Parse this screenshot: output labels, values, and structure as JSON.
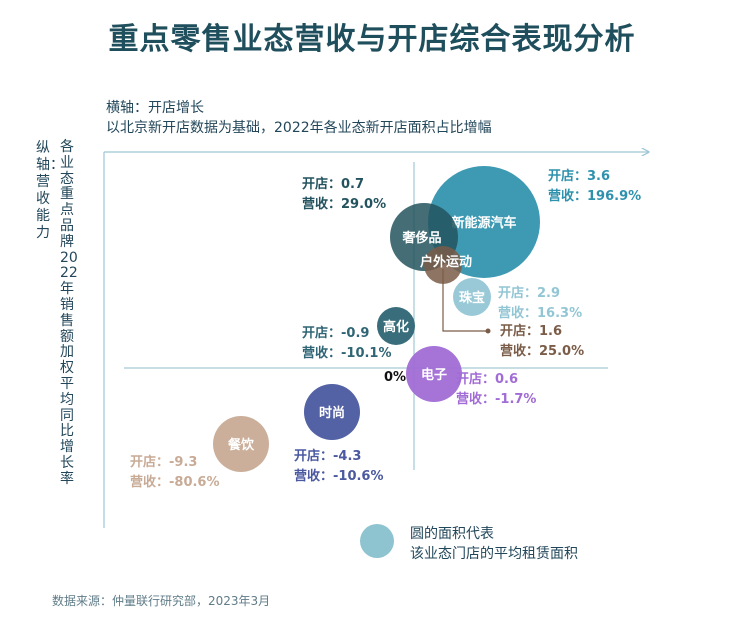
{
  "title": "重点零售业态营收与开店综合表现分析",
  "x_axis": {
    "name": "横轴：开店增长",
    "description": "以北京新开店数据为基础，2022年各业态新开店面积占比增幅"
  },
  "y_axis": {
    "name": "纵轴：营收能力",
    "description": "各业态重点品牌2022年销售额加权平均同比增长率"
  },
  "origin_label": "0%",
  "legend": {
    "line1": "圆的面积代表",
    "line2": "该业态门店的平均租赁面积"
  },
  "source": "数据来源：仲量联行研究部，2023年3月",
  "chart_data": {
    "type": "scatter",
    "title": "重点零售业态营收与开店综合表现分析",
    "xlabel": "横轴：开店增长",
    "ylabel": "纵轴：营收能力",
    "point_labels": {
      "x_prefix": "开店：",
      "y_prefix": "营收："
    },
    "points": [
      {
        "name": "新能源汽车",
        "x": 3.6,
        "y": 196.9,
        "x_text": "3.6",
        "y_text": "196.9%",
        "color": "#2e91ad",
        "size": "largest"
      },
      {
        "name": "奢侈品",
        "x": 0.7,
        "y": 29.0,
        "x_text": "0.7",
        "y_text": "29.0%",
        "color": "#23535e",
        "size": "large"
      },
      {
        "name": "户外运动",
        "x": 1.6,
        "y": 25.0,
        "x_text": "1.6",
        "y_text": "25.0%",
        "color": "#7a5c48",
        "size": "small"
      },
      {
        "name": "珠宝",
        "x": 2.9,
        "y": 16.3,
        "x_text": "2.9",
        "y_text": "16.3%",
        "color": "#93c6d4",
        "size": "small"
      },
      {
        "name": "高化",
        "x": -0.9,
        "y": -10.1,
        "x_text": "-0.9",
        "y_text": "-10.1%",
        "color": "#2f6575",
        "size": "small"
      },
      {
        "name": "电子",
        "x": 0.6,
        "y": -1.7,
        "x_text": "0.6",
        "y_text": "-1.7%",
        "color": "#a16cd5",
        "size": "medium"
      },
      {
        "name": "时尚",
        "x": -4.3,
        "y": -10.6,
        "x_text": "-4.3",
        "y_text": "-10.6%",
        "color": "#4a59a0",
        "size": "medium"
      },
      {
        "name": "餐饮",
        "x": -9.3,
        "y": -80.6,
        "x_text": "-9.3",
        "y_text": "-80.6%",
        "color": "#c8ab96",
        "size": "medium"
      }
    ]
  }
}
